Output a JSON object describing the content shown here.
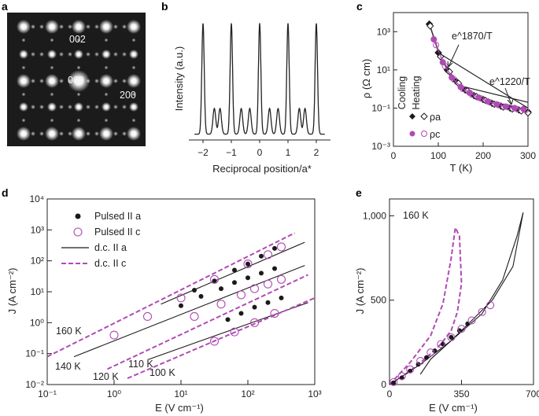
{
  "colors": {
    "black": "#1a1a1a",
    "magenta": "#b04bb4"
  },
  "panel_a": {
    "letter": "a",
    "spot_labels": [
      "002",
      "000",
      "200"
    ]
  },
  "panel_b": {
    "letter": "b",
    "ylabel": "Intensity (a.u.)",
    "xlabel": "Reciprocal position/a*",
    "xticks": [
      "−2",
      "−1",
      "0",
      "1",
      "2"
    ]
  },
  "panel_c": {
    "letter": "c",
    "ylabel": "ρ (Ω cm)",
    "xlabel": "T (K)",
    "yticks": [
      "10³",
      "10¹",
      "10⁻¹",
      "10⁻³"
    ],
    "xticks": [
      "0",
      "100",
      "200",
      "300"
    ],
    "legend_headers": [
      "Cooling",
      "Heating"
    ],
    "legend_rows": [
      "ρa",
      "ρc"
    ],
    "annotations": [
      "e^1870/T",
      "e^1220/T"
    ]
  },
  "panel_d": {
    "letter": "d",
    "ylabel": "J (A cm⁻²)",
    "xlabel": "E (V cm⁻¹)",
    "yticks": [
      "10⁴",
      "10³",
      "10²",
      "10¹",
      "10⁰",
      "10⁻¹",
      "10⁻²"
    ],
    "xticks": [
      "10⁻¹",
      "10⁰",
      "10¹",
      "10²",
      "10³"
    ],
    "legend": [
      "Pulsed II a",
      "Pulsed II c",
      "d.c. II a",
      "d.c. II c"
    ],
    "temperature_labels": [
      "160 K",
      "140 K",
      "120 K",
      "110 K",
      "100 K"
    ]
  },
  "panel_e": {
    "letter": "e",
    "ylabel": "J (A cm⁻²)",
    "xlabel": "E (V cm⁻¹)",
    "yticks": [
      "1,000",
      "500",
      "0"
    ],
    "xticks": [
      "0",
      "350",
      "700"
    ],
    "temperature_label": "160 K"
  },
  "chart_data": [
    {
      "panel": "b",
      "type": "line",
      "title": "",
      "xlabel": "Reciprocal position/a*",
      "ylabel": "Intensity (a.u.)",
      "xlim": [
        -2.5,
        2.5
      ],
      "ylim": [
        0,
        1.05
      ],
      "main_peaks": [
        -2,
        -1,
        0,
        1,
        2
      ],
      "satellite_peaks": [
        -1.6,
        -1.4,
        -0.65,
        -0.35,
        0.35,
        0.65,
        1.4,
        1.6
      ],
      "baseline": 0.05
    },
    {
      "panel": "c",
      "type": "scatter",
      "xlabel": "T (K)",
      "ylabel": "ρ (Ω cm)",
      "yscale": "log",
      "xlim": [
        0,
        300
      ],
      "ylim_log10": [
        -3,
        4
      ],
      "series": [
        {
          "name": "ρa cooling",
          "marker": "filled-diamond",
          "color": "black",
          "x": [
            80,
            100,
            120,
            140,
            160,
            180,
            200,
            220,
            240,
            260,
            280,
            300
          ],
          "y_log10": [
            3.4,
            1.9,
            1.0,
            0.4,
            -0.05,
            -0.35,
            -0.55,
            -0.75,
            -0.9,
            -1.0,
            -1.1,
            -1.2
          ]
        },
        {
          "name": "ρa heating",
          "marker": "open-diamond",
          "color": "black",
          "x": [
            82,
            105,
            125,
            145,
            165,
            185,
            205,
            225,
            245,
            265,
            285,
            300
          ],
          "y_log10": [
            3.3,
            1.7,
            0.9,
            0.3,
            -0.1,
            -0.4,
            -0.6,
            -0.8,
            -0.95,
            -1.05,
            -1.15,
            -1.25
          ]
        },
        {
          "name": "ρc cooling",
          "marker": "filled-circle",
          "color": "magenta",
          "x": [
            90,
            110,
            130,
            150,
            170,
            190,
            210,
            230,
            250,
            270,
            290
          ],
          "y_log10": [
            2.6,
            1.4,
            0.6,
            0.1,
            -0.2,
            -0.45,
            -0.65,
            -0.8,
            -0.92,
            -1.0,
            -1.05
          ]
        },
        {
          "name": "ρc heating",
          "marker": "open-circle",
          "color": "magenta",
          "x": [
            95,
            115,
            135,
            155,
            175,
            195,
            215,
            235,
            255,
            275,
            295
          ],
          "y_log10": [
            2.3,
            1.2,
            0.5,
            0.0,
            -0.3,
            -0.5,
            -0.7,
            -0.85,
            -0.95,
            -1.05,
            -1.1
          ]
        }
      ],
      "fits": [
        {
          "name": "e^1870/T",
          "x": [
            100,
            300
          ],
          "y_log10": [
            1.9,
            -1.0
          ]
        },
        {
          "name": "e^1220/T",
          "x": [
            160,
            300
          ],
          "y_log10": [
            0.1,
            -0.7
          ]
        }
      ]
    },
    {
      "panel": "d",
      "type": "scatter",
      "xlabel": "E (V cm⁻¹)",
      "ylabel": "J (A cm⁻²)",
      "xscale": "log",
      "yscale": "log",
      "xlim_log10": [
        -1,
        3
      ],
      "ylim_log10": [
        -2,
        4
      ],
      "temperatures": [
        {
          "label": "160 K",
          "dc_c_x_log10": [
            -1.0,
            2.7
          ],
          "dc_c_y_log10": [
            -1.1,
            2.9
          ],
          "dc_a_x_log10": [
            0.7,
            2.85
          ],
          "dc_a_y_log10": [
            0.6,
            2.6
          ],
          "pulsed_a_x_log10": [
            1.2,
            1.5,
            1.8,
            2.0,
            2.2,
            2.4
          ],
          "pulsed_a_y_log10": [
            1.05,
            1.35,
            1.7,
            1.9,
            2.15,
            2.4
          ],
          "pulsed_c_x_log10": [
            0.0,
            0.5,
            1.0,
            1.5,
            2.0,
            2.3,
            2.5
          ],
          "pulsed_c_y_log10": [
            -0.4,
            0.2,
            0.8,
            1.4,
            1.9,
            2.2,
            2.45
          ]
        },
        {
          "label": "140 K",
          "dc_a_x_log10": [
            -0.6,
            2.85
          ],
          "dc_a_y_log10": [
            -1.1,
            1.85
          ],
          "pulsed_a_x_log10": [
            1.0,
            1.3,
            1.6,
            1.8,
            2.0,
            2.2,
            2.4
          ],
          "pulsed_a_y_log10": [
            0.55,
            0.85,
            1.1,
            1.3,
            1.45,
            1.6,
            1.75
          ]
        },
        {
          "label": "120 K",
          "dc_c_x_log10": [
            -0.1,
            2.9
          ],
          "dc_c_y_log10": [
            -1.5,
            1.55
          ],
          "pulsed_c_x_log10": [
            1.2,
            1.6,
            1.9,
            2.1,
            2.3,
            2.5
          ],
          "pulsed_c_y_log10": [
            0.2,
            0.6,
            0.9,
            1.1,
            1.25,
            1.4
          ]
        },
        {
          "label": "110 K",
          "dc_a_x_log10": [
            0.5,
            2.9
          ],
          "dc_a_y_log10": [
            -1.2,
            0.65
          ],
          "pulsed_a_x_log10": [
            1.7,
            1.9,
            2.1,
            2.3,
            2.5
          ],
          "pulsed_a_y_log10": [
            0.1,
            0.3,
            0.5,
            0.65,
            0.8
          ]
        },
        {
          "label": "100 K",
          "dc_c_x_log10": [
            0.2,
            3.0
          ],
          "dc_c_y_log10": [
            -1.8,
            0.8
          ],
          "pulsed_c_x_log10": [
            1.5,
            1.8,
            2.1,
            2.4
          ],
          "pulsed_c_y_log10": [
            -0.6,
            -0.3,
            0.0,
            0.3
          ]
        }
      ]
    },
    {
      "panel": "e",
      "type": "line",
      "xlabel": "E (V cm⁻¹)",
      "ylabel": "J (A cm⁻²)",
      "xlim": [
        0,
        700
      ],
      "ylim": [
        0,
        1100
      ],
      "temperature": "160 K",
      "dc_c_loop_x": [
        0,
        100,
        200,
        260,
        300,
        320,
        340,
        350,
        330,
        300,
        250,
        180,
        100,
        40,
        0
      ],
      "dc_c_loop_y": [
        0,
        130,
        290,
        480,
        750,
        930,
        880,
        600,
        430,
        320,
        240,
        160,
        80,
        30,
        0
      ],
      "dc_a_loop_x": [
        0,
        150,
        300,
        450,
        550,
        620,
        650,
        600,
        500,
        400,
        300,
        200,
        150
      ],
      "dc_a_loop_y": [
        0,
        120,
        260,
        420,
        620,
        880,
        1020,
        700,
        500,
        380,
        260,
        150,
        60
      ],
      "pulsed_a_x": [
        20,
        60,
        100,
        140,
        180,
        220,
        260,
        300,
        340,
        380
      ],
      "pulsed_a_y": [
        10,
        40,
        80,
        120,
        160,
        200,
        240,
        280,
        320,
        360
      ],
      "pulsed_c_x": [
        20,
        60,
        100,
        150,
        200,
        250,
        300,
        350,
        400,
        450,
        490
      ],
      "pulsed_c_y": [
        15,
        50,
        90,
        140,
        190,
        240,
        280,
        330,
        380,
        430,
        470
      ]
    }
  ]
}
